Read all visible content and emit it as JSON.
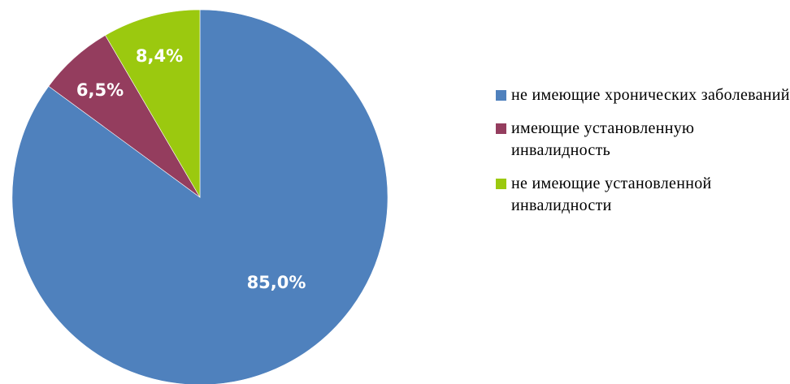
{
  "chart_data": {
    "type": "pie",
    "categories": [
      "не имеющие хронических заболеваний",
      "имеющие установленную инвалидность",
      "не имеющие установленной инвалидности"
    ],
    "values": [
      85.0,
      6.5,
      8.4
    ],
    "value_labels": [
      "85,0%",
      "6,5%",
      "8,4%"
    ],
    "colors": [
      "#4F81BD",
      "#943D5E",
      "#9BC90F"
    ],
    "legend_placement": "right",
    "title": "",
    "start_angle": "12 o'clock",
    "direction": "clockwise"
  },
  "legend": {
    "items": [
      {
        "label": "не имеющие хронических заболеваний",
        "color": "#4F81BD"
      },
      {
        "label": "имеющие установленную инвалидность",
        "color": "#943D5E"
      },
      {
        "label": "не имеющие установленной инвалидности",
        "color": "#9BC90F"
      }
    ]
  }
}
